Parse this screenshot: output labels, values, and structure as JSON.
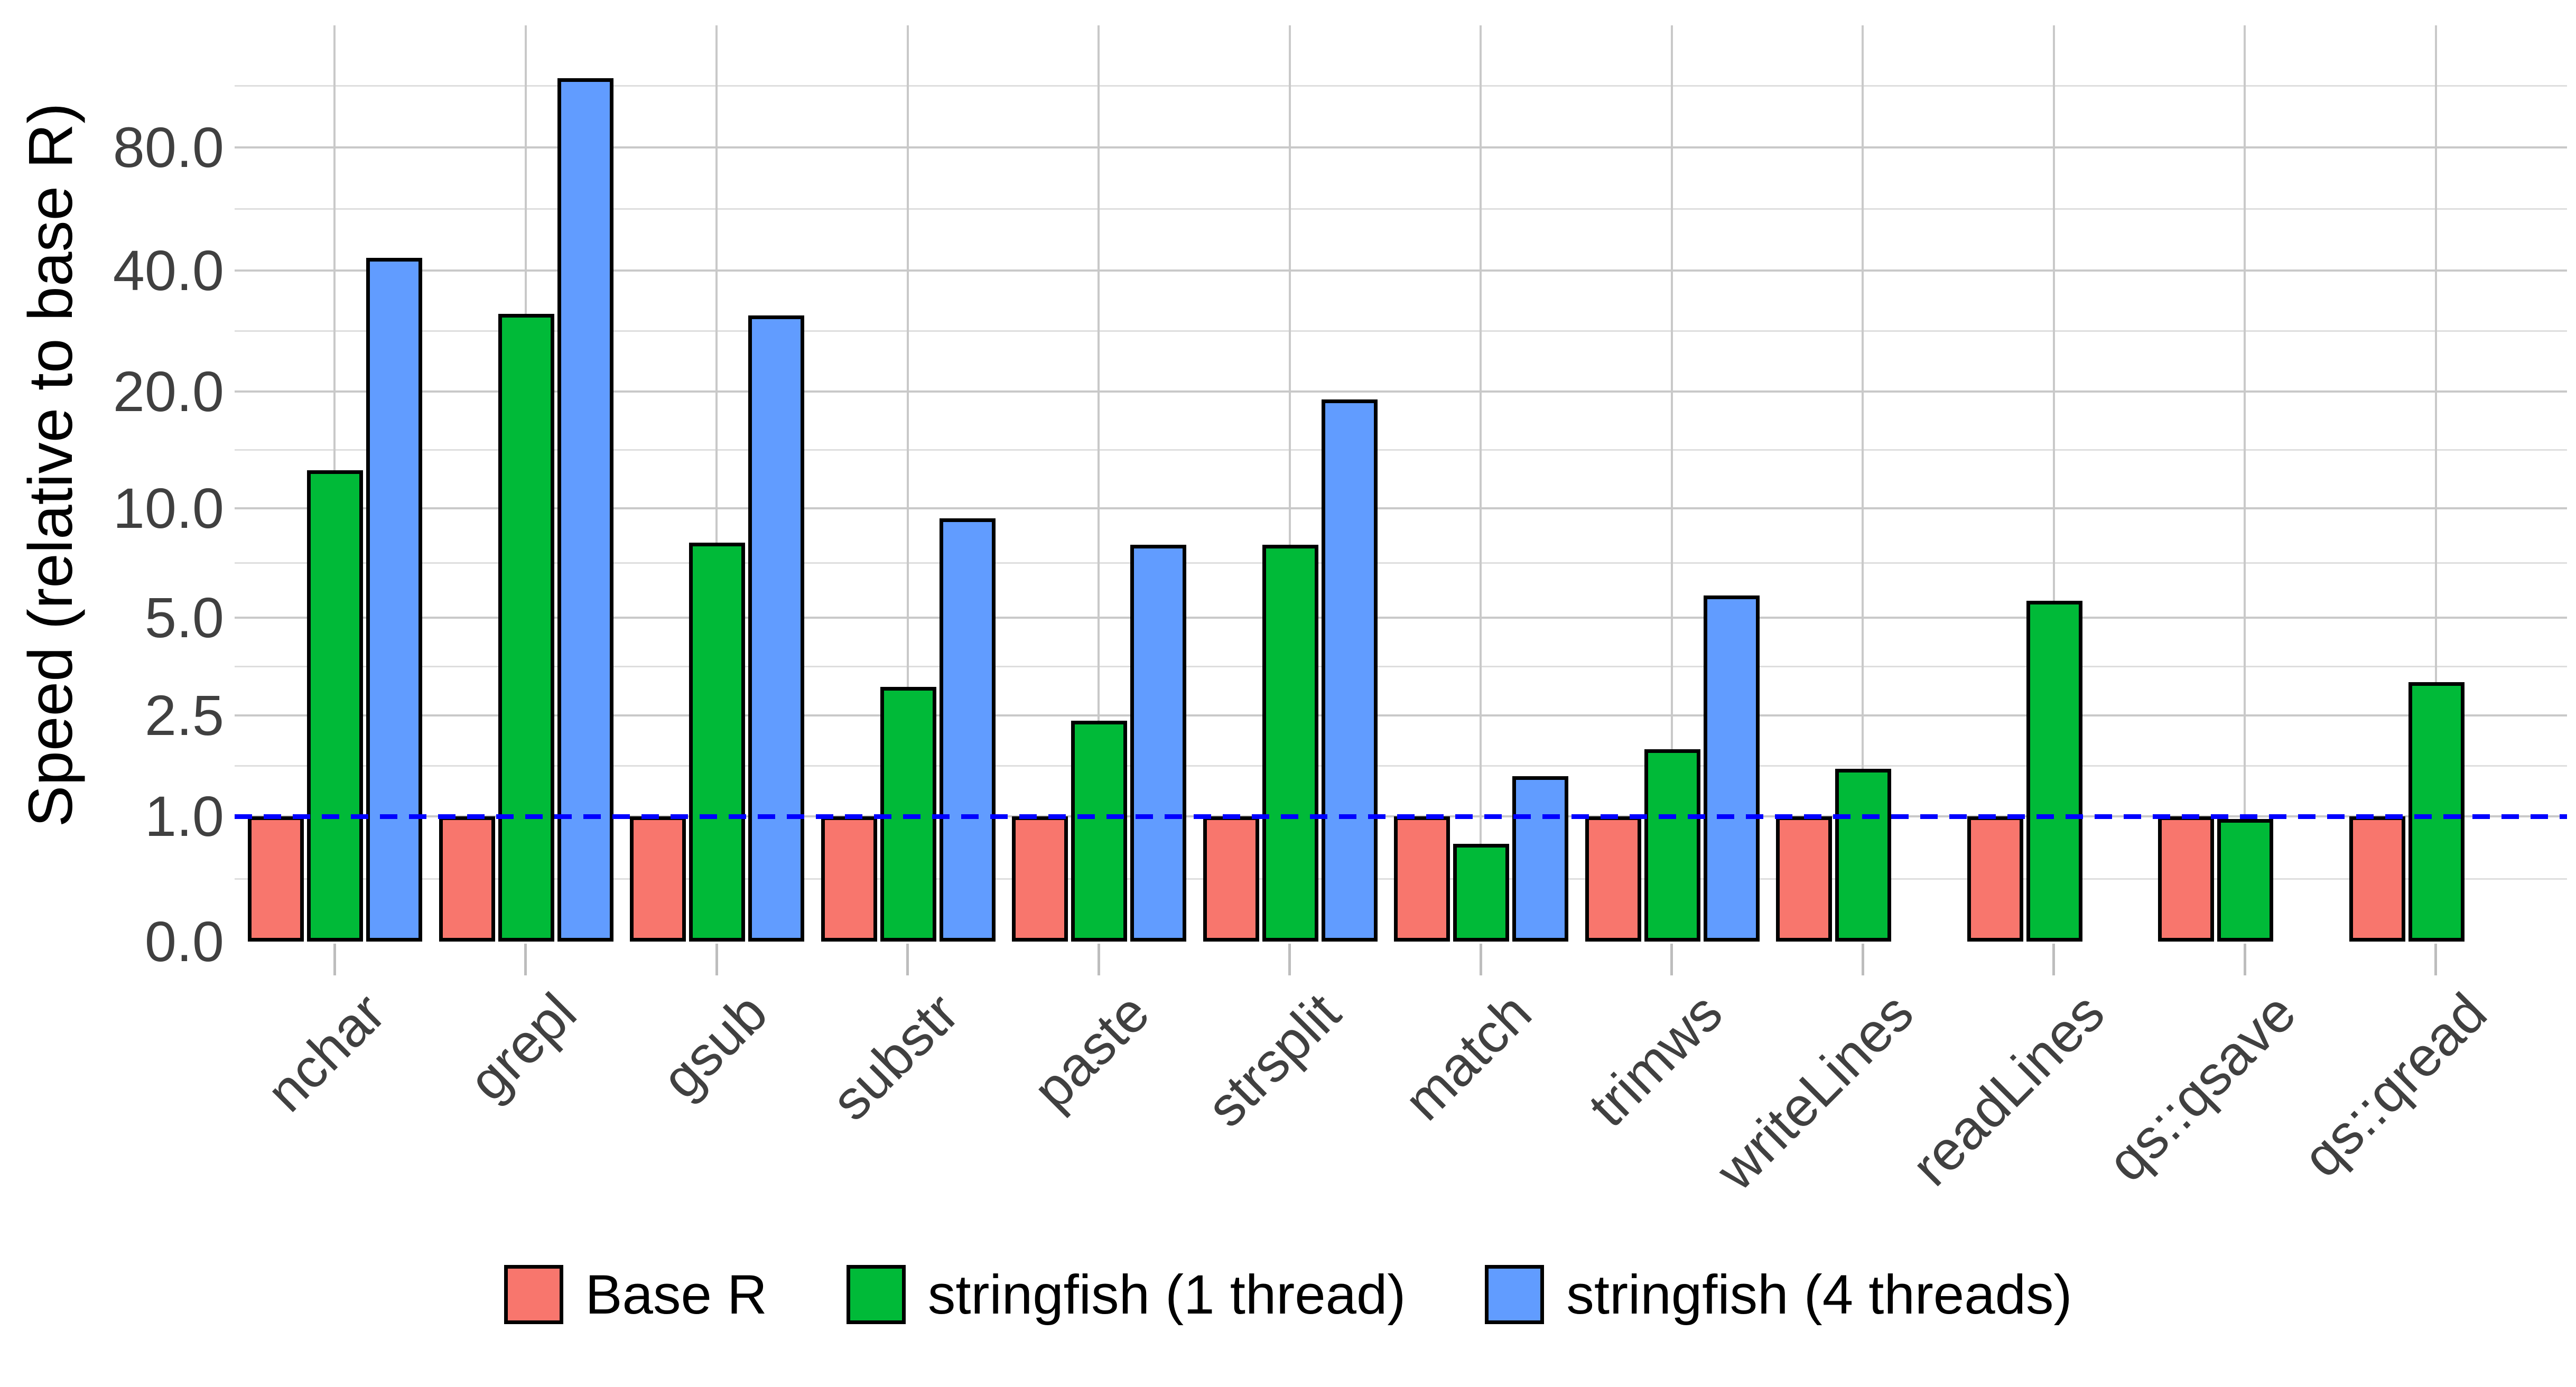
{
  "chart_data": {
    "type": "bar",
    "title": "",
    "ylabel": "Speed (relative to base R)",
    "xlabel": "",
    "scale": "log2(1+x) pseudo-log",
    "grid": true,
    "legend_position": "bottom",
    "categories": [
      "nchar",
      "grepl",
      "gsub",
      "substr",
      "paste",
      "strsplit",
      "match",
      "trimws",
      "writeLines",
      "readLines",
      "qs::qsave",
      "qs::qread"
    ],
    "series": [
      {
        "name": "Base R",
        "color": "#F8766D",
        "values": [
          1.0,
          1.0,
          1.0,
          1.0,
          1.0,
          1.0,
          1.0,
          1.0,
          1.0,
          1.0,
          1.0,
          1.0
        ]
      },
      {
        "name": "stringfish (1 thread)",
        "color": "#00BA38",
        "values": [
          12.6,
          31.3,
          8.1,
          3.1,
          2.4,
          8.0,
          0.72,
          1.9,
          1.6,
          5.6,
          0.97,
          3.2
        ]
      },
      {
        "name": "stringfish (4 threads)",
        "color": "#619CFF",
        "values": [
          43.0,
          118.0,
          31.0,
          9.4,
          8.0,
          19.1,
          1.5,
          5.8,
          null,
          null,
          null,
          null
        ]
      }
    ],
    "y_ticks": [
      {
        "value": 0.0,
        "label": "0.0"
      },
      {
        "value": 1.0,
        "label": "1.0"
      },
      {
        "value": 2.5,
        "label": "2.5"
      },
      {
        "value": 5.0,
        "label": "5.0"
      },
      {
        "value": 10.0,
        "label": "10.0"
      },
      {
        "value": 20.0,
        "label": "20.0"
      },
      {
        "value": 40.0,
        "label": "40.0"
      },
      {
        "value": 80.0,
        "label": "80.0"
      }
    ],
    "reference_line": {
      "value": 1.0,
      "color": "#0000FF",
      "style": "dashed"
    }
  },
  "colors": {
    "background": "#ffffff",
    "major_grid": "#c9c9c9",
    "minor_grid": "#dedede",
    "bar_outline": "#000000",
    "axis_text": "#404040",
    "axis_title": "#000000"
  }
}
